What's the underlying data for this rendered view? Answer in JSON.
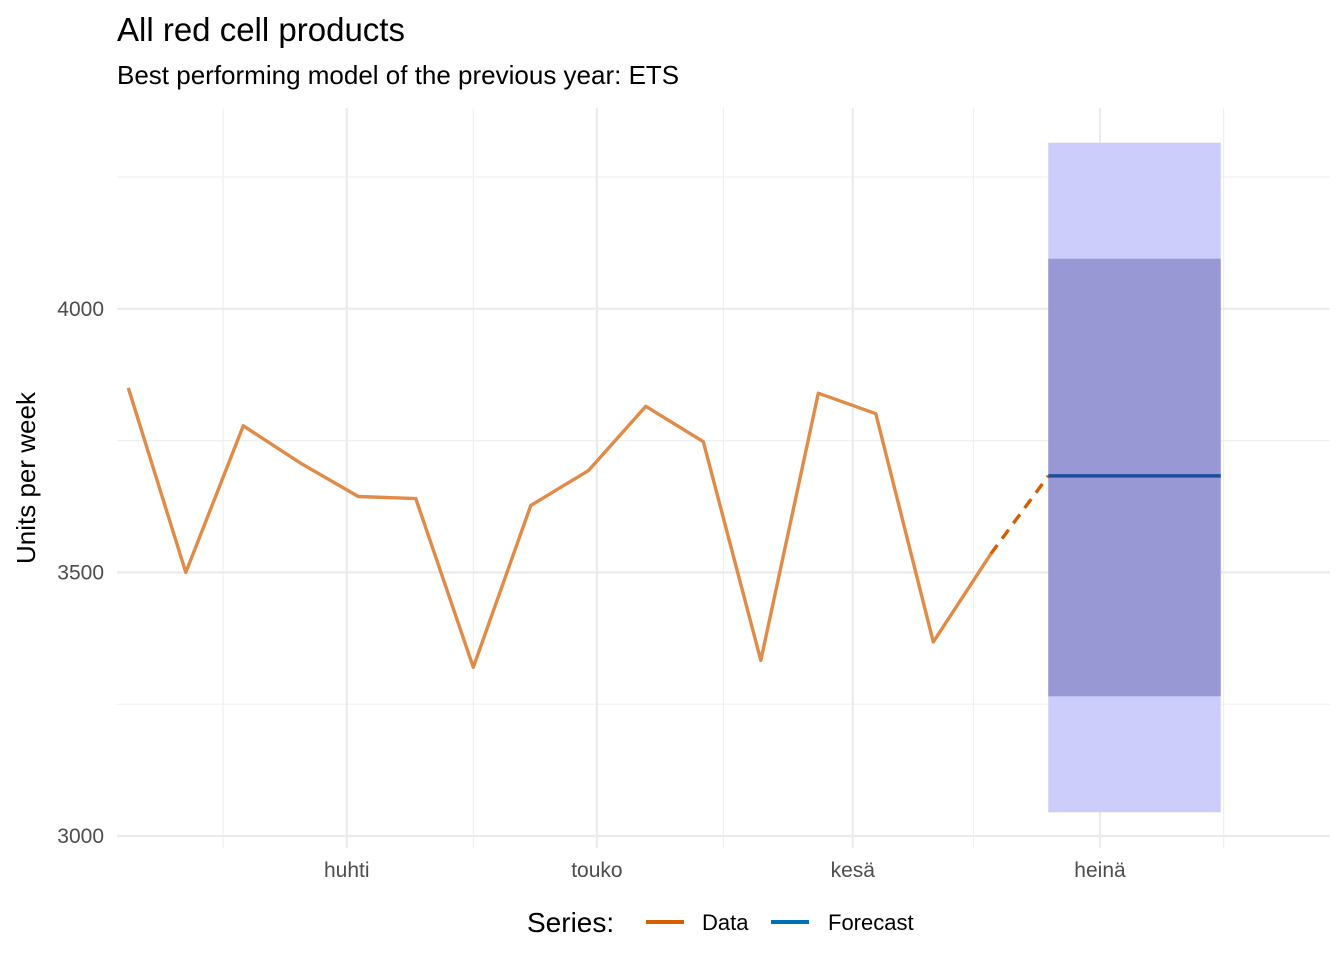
{
  "chart_data": {
    "type": "line",
    "title": "All red cell products",
    "subtitle": "Best performing model of the previous year: ETS",
    "xlabel": "",
    "ylabel": "Units per week",
    "x_tick_labels": [
      "huhti",
      "touko",
      "kesä",
      "heinä"
    ],
    "y_ticks": [
      3000,
      3500,
      4000
    ],
    "ylim": [
      2990,
      4250
    ],
    "grid": true,
    "legend": {
      "title": "Series:",
      "placement": "bottom",
      "entries": [
        {
          "label": "Data",
          "color": "#d55e00"
        },
        {
          "label": "Forecast",
          "color": "#0072b2"
        }
      ]
    },
    "series": [
      {
        "name": "Data",
        "color": "#e08b48",
        "points": [
          {
            "week": -16.9,
            "value": 3850
          },
          {
            "week": -15.9,
            "value": 3500
          },
          {
            "week": -14.9,
            "value": 3778
          },
          {
            "week": -13.9,
            "value": 3707
          },
          {
            "week": -12.9,
            "value": 3644
          },
          {
            "week": -11.9,
            "value": 3640
          },
          {
            "week": -10.9,
            "value": 3320
          },
          {
            "week": -9.9,
            "value": 3627
          },
          {
            "week": -8.9,
            "value": 3693
          },
          {
            "week": -7.9,
            "value": 3815
          },
          {
            "week": -6.9,
            "value": 3748
          },
          {
            "week": -5.9,
            "value": 3333
          },
          {
            "week": -4.9,
            "value": 3840
          },
          {
            "week": -3.9,
            "value": 3801
          },
          {
            "week": -2.9,
            "value": 3368
          },
          {
            "week": -1.9,
            "value": 3535
          }
        ]
      },
      {
        "name": "Data (gap)",
        "color": "#d55e00",
        "dashed": true,
        "points": [
          {
            "week": -1.9,
            "value": 3535
          },
          {
            "week": -0.9,
            "value": 3683
          }
        ]
      },
      {
        "name": "Forecast",
        "color": "#1c4ea0",
        "points": [
          {
            "week": -0.9,
            "value": 3683
          },
          {
            "week": 2.1,
            "value": 3683
          }
        ],
        "interval_80": {
          "lower": 3265,
          "upper": 4095,
          "color": "#7777bb"
        },
        "interval_95": {
          "lower": 3045,
          "upper": 4315,
          "color": "#cccdfb"
        }
      }
    ]
  }
}
